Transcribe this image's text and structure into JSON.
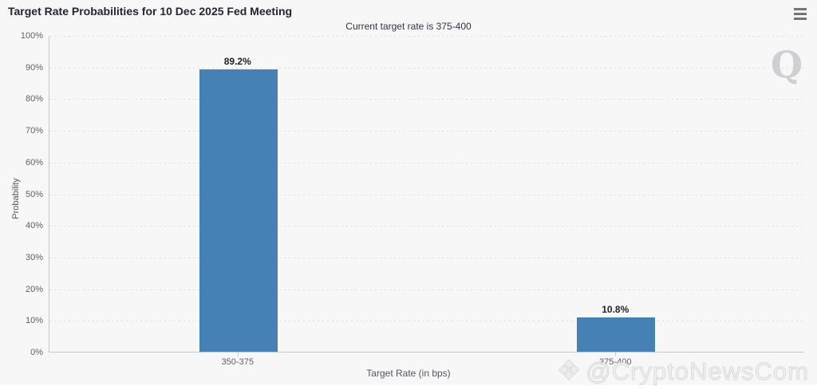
{
  "header": {
    "title": "Target Rate Probabilities for 10 Dec 2025 Fed Meeting",
    "subtitle": "Current target rate is 375-400",
    "menu_icon": "hamburger-menu-icon"
  },
  "chart_data": {
    "type": "bar",
    "title": "Target Rate Probabilities for 10 Dec 2025 Fed Meeting",
    "subtitle": "Current target rate is 375-400",
    "categories": [
      "350-375",
      "375-400"
    ],
    "values": [
      89.2,
      10.8
    ],
    "value_labels": [
      "89.2%",
      "10.8%"
    ],
    "xlabel": "Target Rate (in bps)",
    "ylabel": "Probability",
    "ylim": [
      0,
      100
    ],
    "ytick_values": [
      0,
      10,
      20,
      30,
      40,
      50,
      60,
      70,
      80,
      90,
      100
    ],
    "ytick_labels": [
      "0%",
      "10%",
      "20%",
      "30%",
      "40%",
      "50%",
      "60%",
      "70%",
      "80%",
      "90%",
      "100%"
    ],
    "grid": "horizontal-dotted",
    "legend": "none",
    "bar_color": "#4581b5"
  },
  "watermarks": {
    "q_letter": "Q",
    "brand_text": "@CryptoNewsCom",
    "brand_logo_icon": "diamond-cluster-icon",
    "brand_logo_glyph": "❖"
  },
  "colors": {
    "bar": "#4581b5",
    "background": "#f7f7f8",
    "axis": "#c9c9cd",
    "grid": "#dededf",
    "title_text": "#24242e",
    "tick_text": "#5f5f66"
  }
}
